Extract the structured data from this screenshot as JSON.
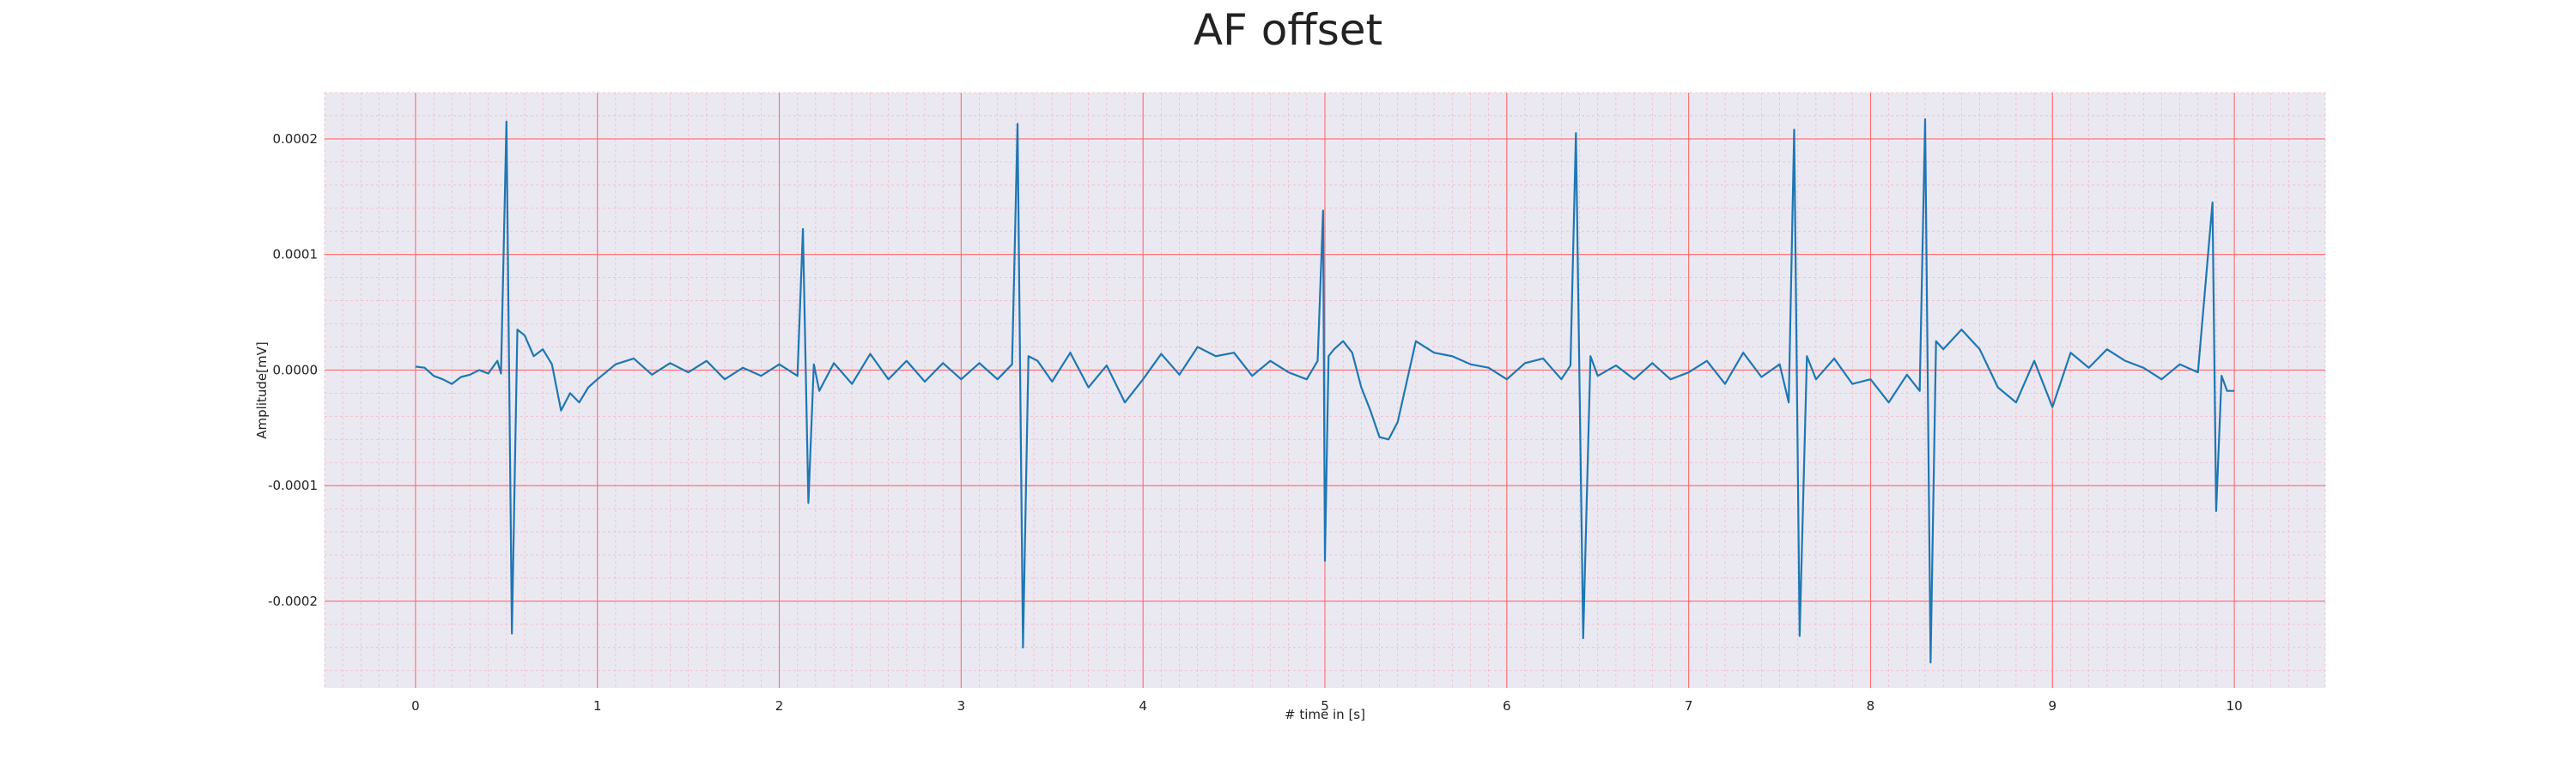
{
  "chart_data": {
    "type": "line",
    "title": "AF offset",
    "xlabel": "# time in [s]",
    "ylabel": "Amplitude[mV]",
    "xlim": [
      -0.5,
      10.5
    ],
    "ylim": [
      -0.000275,
      0.00024
    ],
    "x_ticks": [
      0,
      1,
      2,
      3,
      4,
      5,
      6,
      7,
      8,
      9,
      10
    ],
    "x_tick_labels": [
      "0",
      "1",
      "2",
      "3",
      "4",
      "5",
      "6",
      "7",
      "8",
      "9",
      "10"
    ],
    "y_ticks": [
      0.0002,
      0.0001,
      0.0,
      -0.0001,
      -0.0002
    ],
    "y_tick_labels": [
      "0.0002",
      "0.0001",
      "0.0000",
      "-0.0001",
      "-0.0002"
    ],
    "grid": true,
    "minor_grid": true,
    "colors": {
      "plot_background": "#eae9f2",
      "major_grid": "#ff6b6b",
      "minor_grid": "#f4b8c4",
      "line": "#1f77b4"
    },
    "series": [
      {
        "x": [
          0.0,
          0.05,
          0.1,
          0.15,
          0.2,
          0.25,
          0.3,
          0.35,
          0.4,
          0.45,
          0.47,
          0.5,
          0.53,
          0.56,
          0.6,
          0.65,
          0.7,
          0.75,
          0.8,
          0.85,
          0.9,
          0.95,
          1.0,
          1.1,
          1.2,
          1.3,
          1.4,
          1.5,
          1.6,
          1.7,
          1.8,
          1.9,
          2.0,
          2.1,
          2.13,
          2.16,
          2.19,
          2.22,
          2.3,
          2.4,
          2.5,
          2.6,
          2.7,
          2.8,
          2.9,
          3.0,
          3.1,
          3.2,
          3.28,
          3.31,
          3.34,
          3.37,
          3.42,
          3.5,
          3.6,
          3.7,
          3.8,
          3.9,
          4.0,
          4.1,
          4.2,
          4.3,
          4.4,
          4.5,
          4.6,
          4.7,
          4.8,
          4.9,
          4.96,
          4.99,
          5.0,
          5.02,
          5.05,
          5.1,
          5.15,
          5.2,
          5.25,
          5.3,
          5.35,
          5.4,
          5.5,
          5.6,
          5.7,
          5.8,
          5.9,
          6.0,
          6.1,
          6.2,
          6.3,
          6.35,
          6.38,
          6.42,
          6.46,
          6.5,
          6.6,
          6.7,
          6.8,
          6.9,
          7.0,
          7.1,
          7.2,
          7.3,
          7.4,
          7.5,
          7.55,
          7.58,
          7.61,
          7.65,
          7.7,
          7.8,
          7.9,
          8.0,
          8.1,
          8.2,
          8.27,
          8.3,
          8.33,
          8.36,
          8.4,
          8.5,
          8.6,
          8.7,
          8.8,
          8.9,
          9.0,
          9.1,
          9.2,
          9.3,
          9.4,
          9.5,
          9.6,
          9.7,
          9.8,
          9.88,
          9.9,
          9.93,
          9.96,
          10.0
        ],
        "y": [
          3e-06,
          2e-06,
          -5e-06,
          -8e-06,
          -1.2e-05,
          -6e-06,
          -4e-06,
          0.0,
          -3e-06,
          8e-06,
          -3e-06,
          0.000215,
          -0.000228,
          3.5e-05,
          3e-05,
          1.2e-05,
          1.8e-05,
          5e-06,
          -3.5e-05,
          -2e-05,
          -2.8e-05,
          -1.5e-05,
          -8e-06,
          5e-06,
          1e-05,
          -4e-06,
          6e-06,
          -2e-06,
          8e-06,
          -8e-06,
          2e-06,
          -5e-06,
          5e-06,
          -5e-06,
          0.000122,
          -0.000115,
          5e-06,
          -1.8e-05,
          6e-06,
          -1.2e-05,
          1.4e-05,
          -8e-06,
          8e-06,
          -1e-05,
          6e-06,
          -8e-06,
          6e-06,
          -8e-06,
          5e-06,
          0.000213,
          -0.00024,
          1.2e-05,
          8e-06,
          -1e-05,
          1.5e-05,
          -1.5e-05,
          4e-06,
          -2.8e-05,
          -8e-06,
          1.4e-05,
          -4e-06,
          2e-05,
          1.2e-05,
          1.5e-05,
          -5e-06,
          8e-06,
          -2e-06,
          -8e-06,
          8e-06,
          0.000138,
          -0.000165,
          1.2e-05,
          1.8e-05,
          2.5e-05,
          1.5e-05,
          -1.5e-05,
          -3.5e-05,
          -5.8e-05,
          -6e-05,
          -4.5e-05,
          2.5e-05,
          1.5e-05,
          1.2e-05,
          5e-06,
          2e-06,
          -8e-06,
          6e-06,
          1e-05,
          -8e-06,
          4e-06,
          0.000205,
          -0.000232,
          1.2e-05,
          -5e-06,
          4e-06,
          -8e-06,
          6e-06,
          -8e-06,
          -2e-06,
          8e-06,
          -1.2e-05,
          1.5e-05,
          -6e-06,
          5e-06,
          -2.8e-05,
          0.000208,
          -0.00023,
          1.2e-05,
          -8e-06,
          1e-05,
          -1.2e-05,
          -8e-06,
          -2.8e-05,
          -4e-06,
          -1.8e-05,
          0.000217,
          -0.000253,
          2.5e-05,
          1.8e-05,
          3.5e-05,
          1.8e-05,
          -1.5e-05,
          -2.8e-05,
          8e-06,
          -3.2e-05,
          1.5e-05,
          2e-06,
          1.8e-05,
          8e-06,
          2e-06,
          -8e-06,
          5e-06,
          -2e-06,
          0.000145,
          -0.000122,
          -5e-06,
          -1.8e-05,
          -1.8e-05
        ]
      }
    ]
  }
}
